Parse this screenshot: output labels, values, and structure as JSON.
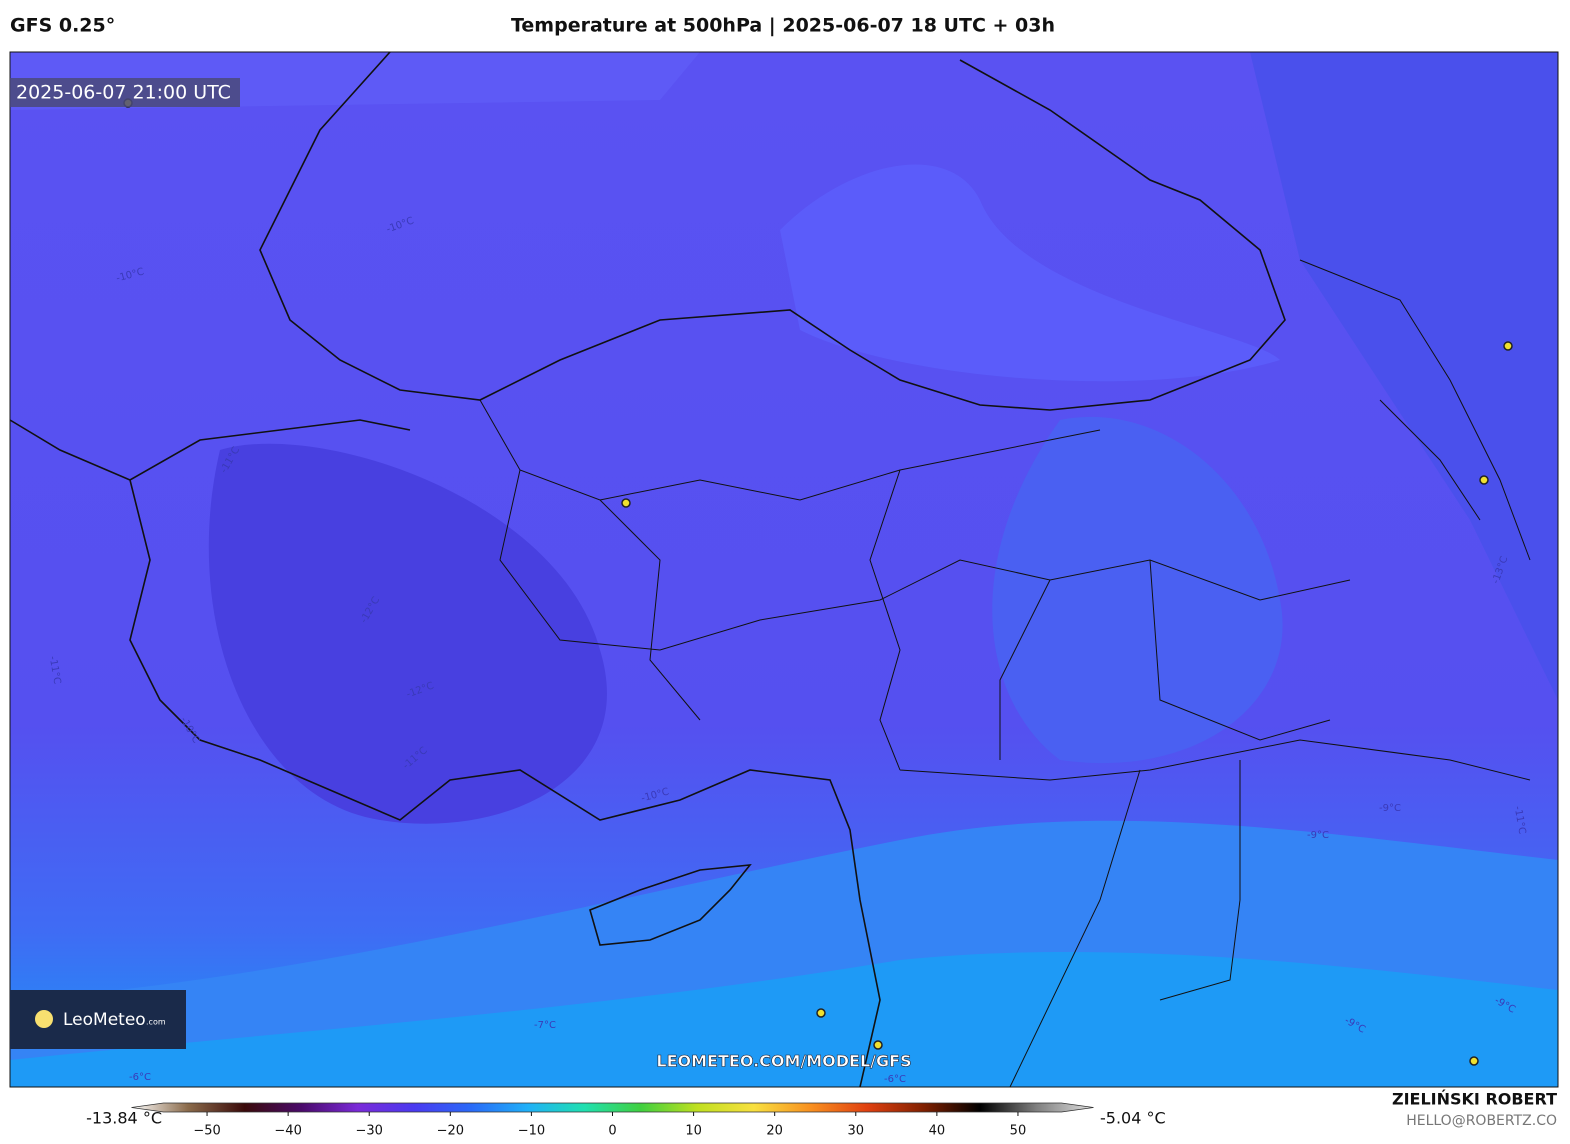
{
  "header": {
    "left": "GFS 0.25°",
    "title": "Temperature at 500hPa | 2025-06-07 18 UTC + 03h"
  },
  "timestamp": "2025-06-07 21:00 UTC",
  "logo": {
    "brand": "LeoMeteo",
    "suffix": ".com"
  },
  "url": "LEOMETEO.COM/MODEL/GFS",
  "author": {
    "name": "ZIELIŃSKI ROBERT",
    "email": "HELLO@ROBERTZ.CO"
  },
  "contour_labels": [
    "-10°C",
    "-10°C",
    "-11°C",
    "-12°C",
    "-12°C",
    "-11°C",
    "-10°C",
    "-11°C",
    "-10°C",
    "-9°C",
    "-9°C",
    "-11°C",
    "-13°C",
    "-9°C",
    "-9°C",
    "-7°C",
    "-6°C",
    "-6°C"
  ],
  "colorbar": {
    "min_label": "-13.84 °C",
    "max_label": "-5.04 °C",
    "xlim": [
      -55,
      55
    ],
    "colors": [
      "#ffffff",
      "#8a6a4a",
      "#3a0a0a",
      "#4a0a6a",
      "#7a2ad8",
      "#4a3af0",
      "#2a6af8",
      "#20b0f8",
      "#20e0b0",
      "#40d040",
      "#c0e020",
      "#f8e040",
      "#f89020",
      "#e04010",
      "#802000",
      "#000000",
      "#808080",
      "#e0e0e0"
    ],
    "ticks": [
      {
        "value": -50,
        "label": "−50"
      },
      {
        "value": -40,
        "label": "−40"
      },
      {
        "value": -30,
        "label": "−30"
      },
      {
        "value": -20,
        "label": "−20"
      },
      {
        "value": -10,
        "label": "−10"
      },
      0,
      10,
      20,
      30,
      40,
      50
    ]
  }
}
